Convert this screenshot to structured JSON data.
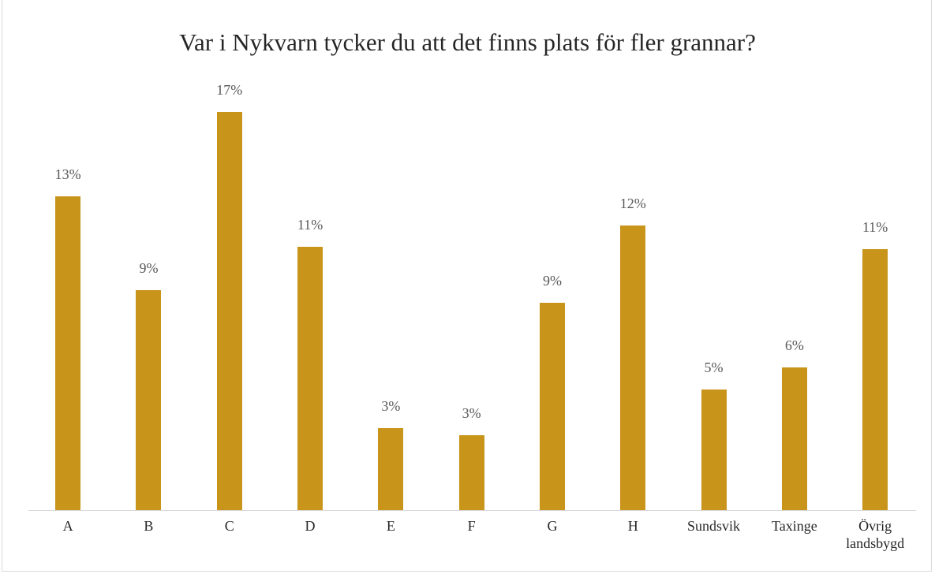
{
  "chart_data": {
    "type": "bar",
    "title": "Var i Nykvarn tycker du att det finns plats för fler grannar?",
    "categories": [
      "A",
      "B",
      "C",
      "D",
      "E",
      "F",
      "G",
      "H",
      "Sundsvik",
      "Taxinge",
      "Övrig landsbygd"
    ],
    "values": [
      13.0,
      9.1,
      16.5,
      10.9,
      3.4,
      3.1,
      8.6,
      11.8,
      5.0,
      5.9,
      10.8
    ],
    "value_labels": [
      "13%",
      "9%",
      "17%",
      "11%",
      "3%",
      "3%",
      "9%",
      "12%",
      "5%",
      "6%",
      "11%"
    ],
    "color": "#c8941a"
  }
}
